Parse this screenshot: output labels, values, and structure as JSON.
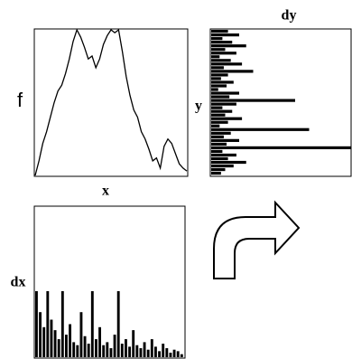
{
  "chart_data": [
    {
      "type": "line",
      "xlabel": "x",
      "ylabel": "f",
      "color": "#000000",
      "ylim": [
        0,
        100
      ],
      "values": [
        0,
        10,
        22,
        30,
        40,
        50,
        58,
        62,
        70,
        80,
        92,
        100,
        95,
        88,
        80,
        82,
        74,
        80,
        90,
        96,
        100,
        98,
        100,
        85,
        68,
        55,
        45,
        40,
        30,
        25,
        18,
        10,
        12,
        5,
        20,
        25,
        22,
        15,
        8,
        5,
        3
      ]
    },
    {
      "type": "bar",
      "orientation": "horizontal",
      "title": "dy",
      "ylabel": "y",
      "color": "#000000",
      "xlim": [
        0,
        100
      ],
      "values": [
        12,
        20,
        8,
        15,
        25,
        10,
        18,
        6,
        14,
        22,
        9,
        30,
        12,
        7,
        16,
        11,
        5,
        20,
        13,
        60,
        18,
        8,
        15,
        10,
        22,
        12,
        6,
        70,
        14,
        9,
        20,
        11,
        100,
        8,
        18,
        12,
        25,
        16,
        10,
        7
      ]
    },
    {
      "type": "bar",
      "ylabel": "dx",
      "color": "#000000",
      "ylim": [
        0,
        100
      ],
      "values": [
        44,
        30,
        20,
        44,
        25,
        18,
        12,
        44,
        15,
        22,
        10,
        8,
        30,
        14,
        9,
        44,
        12,
        20,
        8,
        10,
        6,
        15,
        44,
        9,
        12,
        7,
        18,
        8,
        6,
        10,
        5,
        12,
        7,
        4,
        9,
        6,
        3,
        5,
        4,
        2
      ]
    }
  ]
}
